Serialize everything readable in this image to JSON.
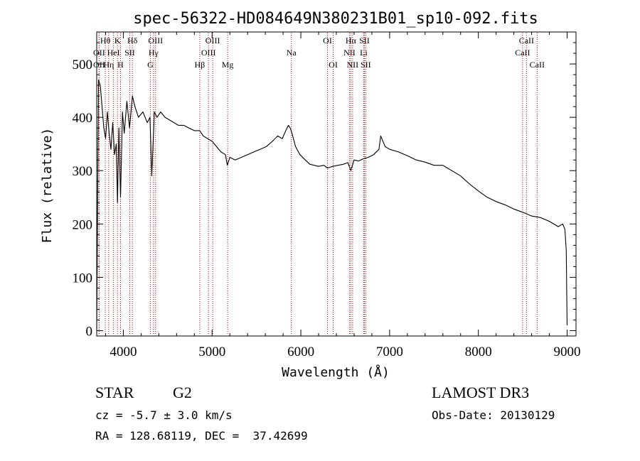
{
  "chart_data": {
    "type": "line",
    "title": "spec-56322-HD084649N380231B01_sp10-092.fits",
    "xlabel": "Wavelength (Å)",
    "ylabel": "Flux (relative)",
    "xlim": [
      3700,
      9100
    ],
    "ylim": [
      -10,
      560
    ],
    "xticks": [
      4000,
      5000,
      6000,
      7000,
      8000,
      9000
    ],
    "yticks": [
      0,
      100,
      200,
      300,
      400,
      500
    ],
    "series": [
      {
        "name": "spectrum",
        "x": [
          3700,
          3720,
          3740,
          3760,
          3780,
          3800,
          3820,
          3840,
          3860,
          3880,
          3900,
          3920,
          3934,
          3950,
          3968,
          3990,
          4010,
          4040,
          4070,
          4102,
          4130,
          4170,
          4220,
          4270,
          4300,
          4320,
          4350,
          4380,
          4420,
          4470,
          4520,
          4570,
          4620,
          4680,
          4740,
          4800,
          4861,
          4900,
          4950,
          5000,
          5050,
          5100,
          5150,
          5172,
          5200,
          5260,
          5330,
          5400,
          5470,
          5540,
          5610,
          5680,
          5740,
          5790,
          5830,
          5860,
          5880,
          5900,
          5940,
          5990,
          6050,
          6100,
          6150,
          6200,
          6260,
          6300,
          6360,
          6420,
          6480,
          6530,
          6563,
          6600,
          6650,
          6700,
          6760,
          6820,
          6880,
          6900,
          6950,
          7000,
          7100,
          7200,
          7300,
          7400,
          7500,
          7600,
          7650,
          7700,
          7800,
          7900,
          8000,
          8100,
          8200,
          8300,
          8400,
          8500,
          8600,
          8700,
          8800,
          8900,
          8950,
          8975,
          8990,
          9000
        ],
        "y": [
          0,
          470,
          460,
          420,
          380,
          360,
          410,
          370,
          340,
          390,
          330,
          350,
          240,
          380,
          250,
          410,
          370,
          430,
          380,
          440,
          420,
          400,
          410,
          390,
          400,
          290,
          410,
          400,
          410,
          400,
          395,
          390,
          385,
          385,
          380,
          375,
          375,
          365,
          360,
          355,
          345,
          335,
          330,
          310,
          325,
          320,
          325,
          330,
          335,
          340,
          345,
          355,
          365,
          360,
          375,
          385,
          380,
          370,
          345,
          330,
          320,
          312,
          310,
          308,
          310,
          305,
          308,
          310,
          312,
          315,
          300,
          320,
          318,
          322,
          325,
          330,
          340,
          365,
          345,
          340,
          335,
          328,
          320,
          316,
          310,
          310,
          305,
          300,
          290,
          275,
          262,
          250,
          242,
          236,
          228,
          222,
          215,
          212,
          205,
          195,
          200,
          190,
          150,
          10
        ]
      }
    ],
    "spectral_lines": [
      {
        "name": "OII",
        "wavelength": 3727,
        "row": 1
      },
      {
        "name": "OII",
        "wavelength": 3727,
        "row": 2
      },
      {
        "name": "Hθ",
        "wavelength": 3797,
        "row": 0
      },
      {
        "name": "Hη",
        "wavelength": 3835,
        "row": 2
      },
      {
        "name": "HeI",
        "wavelength": 3889,
        "row": 1
      },
      {
        "name": "K",
        "wavelength": 3934,
        "row": 0
      },
      {
        "name": "H",
        "wavelength": 3968,
        "row": 2
      },
      {
        "name": "SII",
        "wavelength": 4072,
        "row": 1
      },
      {
        "name": "Hδ",
        "wavelength": 4102,
        "row": 0
      },
      {
        "name": "Hγ",
        "wavelength": 4340,
        "row": 1
      },
      {
        "name": "G",
        "wavelength": 4305,
        "row": 2
      },
      {
        "name": "OIII",
        "wavelength": 4363,
        "row": 0
      },
      {
        "name": "Hβ",
        "wavelength": 4861,
        "row": 2
      },
      {
        "name": "OIII",
        "wavelength": 4959,
        "row": 1
      },
      {
        "name": "OIII",
        "wavelength": 5007,
        "row": 0
      },
      {
        "name": "Mg",
        "wavelength": 5175,
        "row": 2
      },
      {
        "name": "Na",
        "wavelength": 5893,
        "row": 1
      },
      {
        "name": "OI",
        "wavelength": 6300,
        "row": 0
      },
      {
        "name": "OI",
        "wavelength": 6364,
        "row": 2
      },
      {
        "name": "NII",
        "wavelength": 6548,
        "row": 1
      },
      {
        "name": "Hα",
        "wavelength": 6563,
        "row": 0
      },
      {
        "name": "NII",
        "wavelength": 6583,
        "row": 2
      },
      {
        "name": "SII",
        "wavelength": 6716,
        "row": 0
      },
      {
        "name": "Li",
        "wavelength": 6708,
        "row": 1
      },
      {
        "name": "SII",
        "wavelength": 6731,
        "row": 2
      },
      {
        "name": "CaII",
        "wavelength": 8498,
        "row": 1
      },
      {
        "name": "CaII",
        "wavelength": 8542,
        "row": 0
      },
      {
        "name": "CaII",
        "wavelength": 8662,
        "row": 2
      }
    ],
    "line_color": "#cc0000",
    "trace_color": "#000000"
  },
  "info": {
    "object_class": "STAR",
    "subclass": "G2",
    "survey": "LAMOST DR3",
    "redshift": "cz = -5.7 ± 3.0 km/s",
    "obs_date": "Obs-Date: 20130129",
    "coords": "RA = 128.68119, DEC =  37.42699"
  }
}
